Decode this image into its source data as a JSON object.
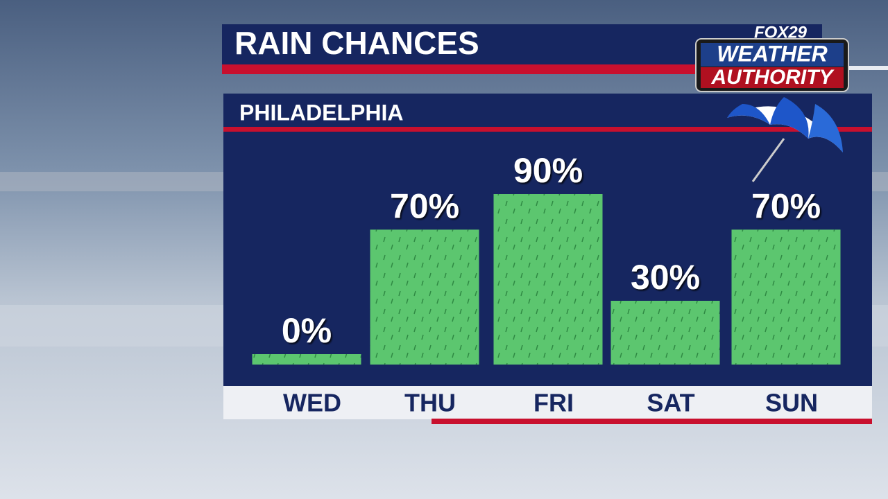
{
  "chart_data": {
    "type": "bar",
    "title": "RAIN CHANCES",
    "subtitle": "PHILADELPHIA",
    "brand": {
      "network": "FOX29",
      "line1": "WEATHER",
      "line2": "AUTHORITY"
    },
    "categories": [
      "WED",
      "THU",
      "FRI",
      "SAT",
      "SUN"
    ],
    "values": [
      0,
      70,
      90,
      30,
      70
    ],
    "value_labels": [
      "0%",
      "70%",
      "90%",
      "30%",
      "70%"
    ],
    "color": "#5cc66f"
  }
}
